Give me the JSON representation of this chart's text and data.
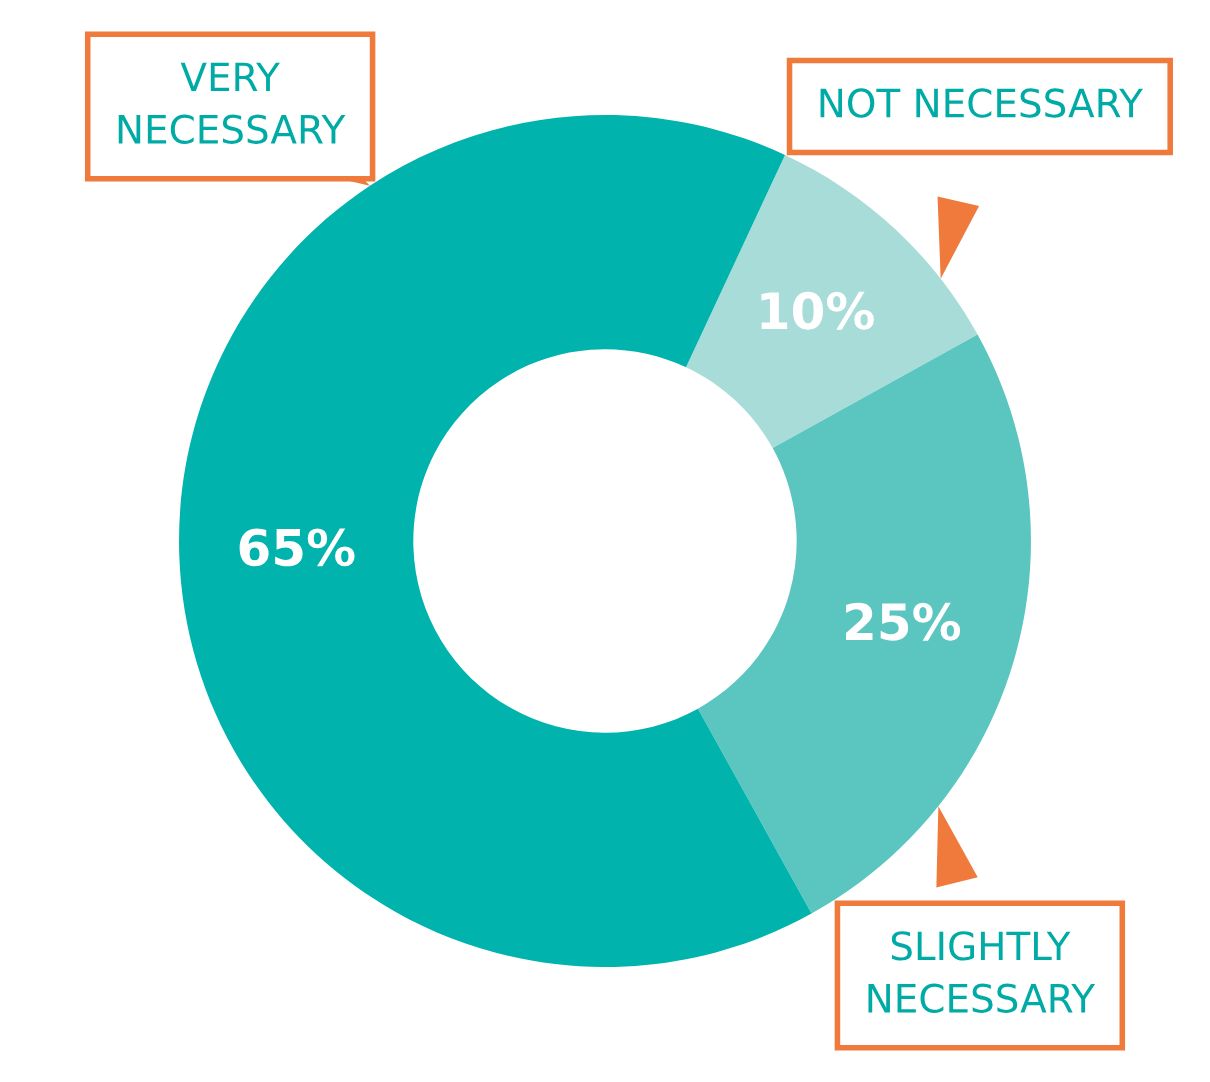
{
  "chart_data": {
    "type": "donut",
    "categories": [
      "NOT NECESSARY",
      "SLIGHTLY NECESSARY",
      "VERY NECESSARY"
    ],
    "values": [
      10,
      25,
      65
    ],
    "colors": [
      "#a8dcd9",
      "#5bc5c0",
      "#00b3ad"
    ],
    "value_labels": [
      "10%",
      "25%",
      "65%"
    ],
    "legend": false
  }
}
